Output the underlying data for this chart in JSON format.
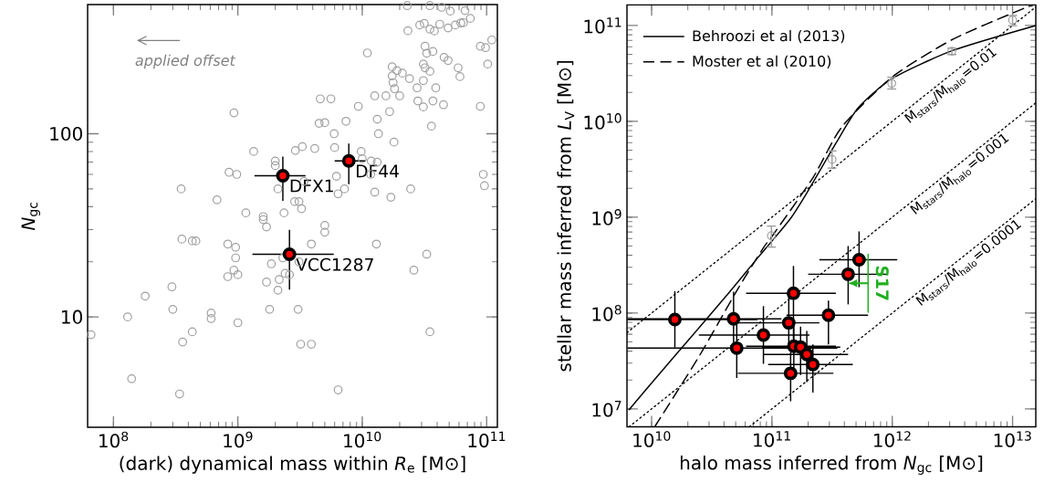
{
  "chart_data": [
    {
      "type": "scatter",
      "xlabel": "(dark) dynamical mass within *R*$_{e}$ [M⊙]",
      "ylabel": "*N*$_{gc}$",
      "log": "xy",
      "marker": "circle",
      "xlim": [
        62000000.0,
        122000000000.0
      ],
      "ylim": [
        2.5,
        507
      ],
      "xticks": [
        {
          "value": 100000000.0,
          "label": "10$^{8}$"
        },
        {
          "value": 1000000000.0,
          "label": "10$^{9}$"
        },
        {
          "value": 10000000000.0,
          "label": "10$^{10}$"
        },
        {
          "value": 100000000000.0,
          "label": "10$^{11}$"
        }
      ],
      "yticks": [
        10,
        100
      ],
      "annotations": [
        "applied offset"
      ],
      "series": [
        {
          "color": "#a0a0a0",
          "x": [
            930000000.0,
            350000000.0,
            680000000.0,
            850000000.0,
            980000000.0,
            1340000000.0,
            1160000000.0,
            1600000000.0,
            1700000000.0,
            2000000000.0,
            2000000000.0,
            2100000000.0,
            2350000000.0,
            2860000000.0,
            3100000000.0,
            3250000000.0,
            3400000000.0,
            2900000000.0,
            3300000000.0,
            4150000000.0,
            4500000000.0,
            5000000000.0,
            4600000000.0,
            5600000000.0,
            5950000000.0,
            6000000000.0,
            7400000000.0,
            9300000000.0,
            6200000000.0,
            6400000000.0,
            7200000000.0,
            5000000000.0,
            5000000000.0,
            9800000000.0,
            10000000000.0,
            11800000000.0,
            13200000000.0,
            11700000000.0,
            12600000000.0,
            17000000000.0,
            24500000000.0,
            13500000000.0,
            13200000000.0,
            18000000000.0,
            16600000000.0,
            12600000000.0,
            15500000000.0,
            20000000000.0,
            11000000000.0,
            17400000000.0,
            19000000000.0,
            21000000000.0,
            24000000000.0,
            17400000000.0,
            17700000000.0,
            18200000000.0,
            27600000000.0,
            28000000000.0,
            31000000000.0,
            31000000000.0,
            31000000000.0,
            32000000000.0,
            35000000000.0,
            39000000000.0,
            37000000000.0,
            45000000000.0,
            36000000000.0,
            32000000000.0,
            33000000000.0,
            37000000000.0,
            23300000000.0,
            29000000000.0,
            31500000000.0,
            35000000000.0,
            38000000000.0,
            42000000000.0,
            45500000000.0,
            49000000000.0,
            59000000000.0,
            61000000000.0,
            49000000000.0,
            56000000000.0,
            62000000000.0,
            65000000000.0,
            74000000000.0,
            51000000000.0,
            67000000000.0,
            23000000000.0,
            35000000000.0,
            43500000000.0,
            89000000000.0,
            98000000000.0,
            102000000000.0,
            110000000000.0,
            89000000000.0,
            94000000000.0,
            96000000000.0,
            355000000.0,
            430000000.0,
            460000000.0,
            830000000.0,
            960000000.0,
            960000000.0,
            930000000.0,
            830000000.0,
            1000000000.0,
            295000000.0,
            180000000.0,
            300000000.0,
            130000000.0,
            610000000.0,
            610000000.0,
            1000000000.0,
            430000000.0,
            360000000.0,
            66000000.0,
            140000000.0,
            340000000.0,
            1600000000.0,
            1860000000.0,
            1700000000.0,
            1800000000.0,
            2150000000.0,
            2400000000.0,
            2100000000.0,
            2300000000.0,
            2600000000.0,
            3100000000.0,
            3050000000.0,
            3200000000.0,
            3900000000.0,
            3900000000.0,
            6400000000.0,
            13000000000.0,
            26000000000.0,
            33000000000.0,
            35000000000.0
          ],
          "values": [
            130,
            50,
            43.6,
            61.6,
            60,
            80,
            37,
            35.3,
            31,
            71,
            67,
            50,
            37,
            42.6,
            42.6,
            39,
            55,
            81,
            85,
            83,
            114,
            115,
            155,
            155,
            100,
            84,
            117,
            141,
            58.6,
            47,
            50,
            31.6,
            29,
            80,
            73,
            71,
            70,
            60,
            48,
            45,
            50,
            100,
            120,
            90,
            132,
            161,
            161,
            161,
            276,
            232,
            221,
            214,
            200,
            207,
            190,
            176,
            178,
            151,
            140,
            195,
            240,
            229,
            219,
            178,
            151,
            144,
            110,
            300,
            275,
            281,
            365,
            392,
            400,
            372,
            364,
            396,
            261,
            251,
            229,
            205,
            378,
            392,
            402,
            404,
            426,
            467,
            470,
            500,
            500,
            490,
            300,
            295,
            240,
            325,
            141,
            60,
            52,
            26.6,
            26,
            26,
            25,
            24,
            21,
            18,
            16.6,
            17,
            14.6,
            13,
            11,
            10,
            10.5,
            9.8,
            9.3,
            8.3,
            7.3,
            8.0,
            4.6,
            3.8,
            34,
            19.5,
            15.5,
            11,
            16,
            17.3,
            14,
            21,
            17,
            20,
            11,
            7.1,
            7.1,
            25,
            4.0,
            25,
            18,
            22,
            8.3
          ]
        },
        {
          "name": "DFX1",
          "color": "#ff0000",
          "x": [
            2300000000.0
          ],
          "values": [
            59
          ],
          "errors": [
            [
              43,
              75
            ]
          ],
          "xerrors": [
            [
              1360000000.0,
              3500000000.0
            ]
          ]
        },
        {
          "name": "DF44",
          "color": "#ff0000",
          "x": [
            7800000000.0
          ],
          "values": [
            71
          ],
          "errors": [
            [
              53,
              88.5
            ]
          ],
          "xerrors": [
            [
              6000000000.0,
              10700000000.0
            ]
          ]
        },
        {
          "name": "VCC1287",
          "color": "#ff0000",
          "x": [
            2600000000.0
          ],
          "values": [
            22
          ],
          "errors": [
            [
              14.1,
              29.9
            ]
          ],
          "xerrors": [
            [
              1310000000.0,
              5900000000.0
            ]
          ]
        }
      ]
    },
    {
      "type": "scatter",
      "xlabel": "halo mass inferred from *N*$_{gc}$ [M⊙]",
      "ylabel": "stellar mass inferred from *L*$_{V}$ [M⊙]",
      "log": "xy",
      "marker": "circle",
      "legend": "top left",
      "xlim": [
        6240000000.0,
        15600000000000.0
      ],
      "ylim": [
        6500000.0,
        164000000000.0
      ],
      "xticks": [
        {
          "value": 10000000000.0,
          "label": "10$^{10}$"
        },
        {
          "value": 100000000000.0,
          "label": "10$^{11}$"
        },
        {
          "value": 1000000000000.0,
          "label": "10$^{12}$"
        },
        {
          "value": 10000000000000.0,
          "label": "10$^{13}$"
        }
      ],
      "yticks": [
        {
          "value": 10000000.0,
          "label": "10$^{7}$"
        },
        {
          "value": 100000000.0,
          "label": "10$^{8}$"
        },
        {
          "value": 1000000000.0,
          "label": "10$^{9}$"
        },
        {
          "value": 10000000000.0,
          "label": "10$^{10}$"
        },
        {
          "value": 100000000000.0,
          "label": "10$^{11}$"
        }
      ],
      "series": [
        {
          "name": "Behroozi et al (2013)",
          "type": "line",
          "marker": "none",
          "line_style": "solid",
          "color": "#000000",
          "x": [
            6500000000.0,
            10000000000.0,
            18000000000.0,
            41000000000.0,
            76000000000.0,
            141000000000.0,
            204000000000.0,
            340000000000.0,
            520000000000.0,
            1000000000000.0,
            3200000000000.0,
            15600000000000.0
          ],
          "values": [
            9800000.0,
            18600000.0,
            44000000.0,
            147000000.0,
            375000000.0,
            950000000.0,
            1970000000.0,
            5900000000.0,
            13800000000.0,
            28000000000.0,
            55000000000.0,
            100000000000.0
          ]
        },
        {
          "name": "Moster et al (2010)",
          "type": "line",
          "marker": "none",
          "line_style": "dashed",
          "color": "#000000",
          "x": [
            10600000000.0,
            24700000000.0,
            52000000000.0,
            85000000000.0,
            100000000000.0,
            220000000000.0,
            380000000000.0,
            1000000000000.0,
            3200000000000.0,
            12600000000000.0,
            14500000000000.0
          ],
          "values": [
            6500000.0,
            35000000.0,
            178000000.0,
            480000000.0,
            630000000.0,
            2600000000.0,
            8700000000.0,
            29000000000.0,
            72000000000.0,
            152000000000.0,
            160000000000.0
          ]
        },
        {
          "name": "M$_{stars}$/M$_{halo}$=0.01",
          "type": "line",
          "marker": "none",
          "line_style": "dotted",
          "color": "#000000",
          "x": [
            6240000000.0,
            15600000000000.0
          ],
          "values": [
            62400000.0,
            156000000000.0
          ]
        },
        {
          "name": "M$_{stars}$/M$_{halo}$=0.001",
          "type": "line",
          "marker": "none",
          "line_style": "dotted",
          "color": "#000000",
          "x": [
            6500000000.0,
            15600000000000.0
          ],
          "values": [
            6500000.0,
            15600000000.0
          ]
        },
        {
          "name": "M$_{stars}$/M$_{halo}$=0.0001",
          "type": "line",
          "marker": "none",
          "line_style": "dotted",
          "color": "#000000",
          "x": [
            65000000000.0,
            15600000000000.0
          ],
          "values": [
            6500000.0,
            1560000000.0
          ]
        },
        {
          "color": "#a0a0a0",
          "x": [
            99000000000.0,
            316000000000.0,
            990000000000.0,
            3130000000000.0,
            10000000000000.0
          ],
          "values": [
            640000000.0,
            4000000000.0,
            24900000000.0,
            54000000000.0,
            114000000000.0
          ],
          "errors": [
            [
              480000000.0,
              820000000.0
            ],
            [
              3200000000.0,
              5000000000.0
            ],
            [
              21400000000.0,
              29300000000.0
            ],
            [
              49000000000.0,
              59000000000.0
            ],
            [
              98000000000.0,
              129000000000.0
            ]
          ]
        },
        {
          "color": "#ff0000",
          "x": [
            15600000000.0,
            48000000000.0,
            51000000000.0,
            85000000000.0,
            138000000000.0,
            151000000000.0,
            295000000000.0,
            430000000000.0,
            530000000000.0,
            152000000000.0,
            173000000000.0,
            195000000000.0,
            219000000000.0,
            143000000000.0
          ],
          "values": [
            85500000.0,
            87000000.0,
            43000000.0,
            59000000.0,
            79000000.0,
            161000000.0,
            95000000.0,
            254000000.0,
            360000000.0,
            45000000.0,
            44000000.0,
            37000000.0,
            29000000.0,
            23500000.0
          ],
          "errors": [
            [
              43700000.0,
              169000000.0
            ],
            [
              44000000.0,
              167000000.0
            ],
            [
              21000000.0,
              92000000.0
            ],
            [
              29500000.0,
              118000000.0
            ],
            [
              42000000.0,
              155000000.0
            ],
            [
              42000000.0,
              310000000.0
            ],
            [
              47000000.0,
              135000000.0
            ],
            [
              123000000.0,
              500000000.0
            ],
            [
              186000000.0,
              710000000.0
            ],
            [
              21000000.0,
              81000000.0
            ],
            [
              22500000.0,
              72000000.0
            ],
            [
              19000000.0,
              65000000.0
            ],
            [
              14800000.0,
              47000000.0
            ],
            [
              12000000.0,
              39000000.0
            ]
          ],
          "xerrors": [
            [
              6300000000.0,
              76000000000.0
            ],
            [
              6300000000.0,
              120000000000.0
            ],
            [
              6300000000.0,
              350000000000.0
            ],
            [
              24700000000.0,
              205000000000.0
            ],
            [
              49500000000.0,
              248000000000.0
            ],
            [
              61000000000.0,
              340000000000.0
            ],
            [
              132000000000.0,
              630000000000.0
            ],
            [
              200000000000.0,
              900000000000.0
            ],
            [
              248000000000.0,
              1100000000000.0
            ],
            [
              61000000000.0,
              340000000000.0
            ],
            [
              83000000000.0,
              370000000000.0
            ],
            [
              85000000000.0,
              430000000000.0
            ],
            [
              93000000000.0,
              470000000000.0
            ],
            [
              52000000000.0,
              324000000000.0
            ]
          ]
        },
        {
          "name": "S17",
          "type": "line",
          "marker": "none",
          "line_style": "solid",
          "color": "#20b020",
          "x": [
            630000000000.0,
            630000000000.0
          ],
          "values": [
            102000000.0,
            410000000.0
          ]
        }
      ]
    }
  ]
}
